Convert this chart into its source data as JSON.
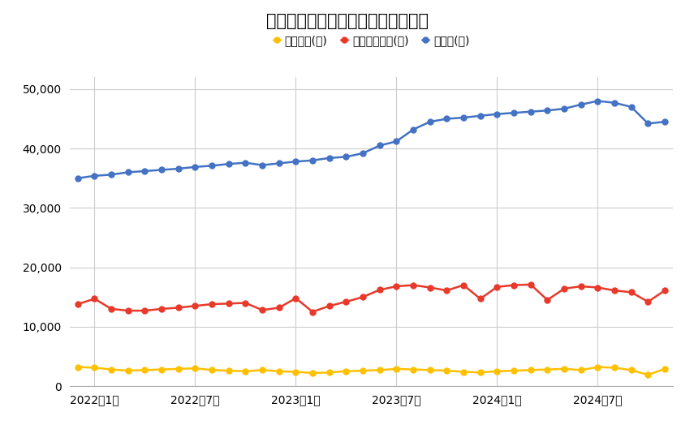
{
  "title": "首都圏　中古マンション件数の推移",
  "legend_labels": [
    "成約件数(件)",
    "新規登録件数(件)",
    "在庫数(件)"
  ],
  "colors": [
    "#FFC000",
    "#E8392A",
    "#4472C4"
  ],
  "x_tick_labels": [
    "2022年1月",
    "2022年7月",
    "2023年1月",
    "2023年7月",
    "2024年1月",
    "2024年7月"
  ],
  "x_tick_positions": [
    1,
    7,
    13,
    19,
    25,
    31
  ],
  "ylim": [
    0,
    52000
  ],
  "yticks": [
    0,
    10000,
    20000,
    30000,
    40000,
    50000
  ],
  "background_color": "#ffffff",
  "grid_color": "#cccccc",
  "months": 36,
  "seiyaku": [
    3200,
    3100,
    2800,
    2600,
    2700,
    2800,
    2900,
    3000,
    2700,
    2600,
    2500,
    2700,
    2500,
    2400,
    2200,
    2300,
    2500,
    2600,
    2700,
    2900,
    2800,
    2700,
    2600,
    2400,
    2300,
    2500,
    2600,
    2700,
    2800,
    2900,
    2700,
    3200,
    3100,
    2700,
    1900,
    2900
  ],
  "shinki": [
    13800,
    14700,
    13000,
    12700,
    12700,
    13000,
    13200,
    13500,
    13800,
    13900,
    14000,
    12800,
    13200,
    14800,
    12500,
    13500,
    14200,
    15000,
    16200,
    16800,
    17000,
    16600,
    16100,
    17000,
    14700,
    16700,
    17000,
    17100,
    14500,
    16400,
    16800,
    16600,
    16100,
    15800,
    14200,
    16100
  ],
  "zaiko": [
    35000,
    35400,
    35600,
    36000,
    36200,
    36400,
    36600,
    36900,
    37100,
    37400,
    37600,
    37200,
    37500,
    37800,
    38000,
    38400,
    38600,
    39200,
    40500,
    41200,
    43200,
    44500,
    45000,
    45200,
    45500,
    45800,
    46000,
    46200,
    46400,
    46700,
    47400,
    48000,
    47700,
    47000,
    44200,
    44500
  ]
}
